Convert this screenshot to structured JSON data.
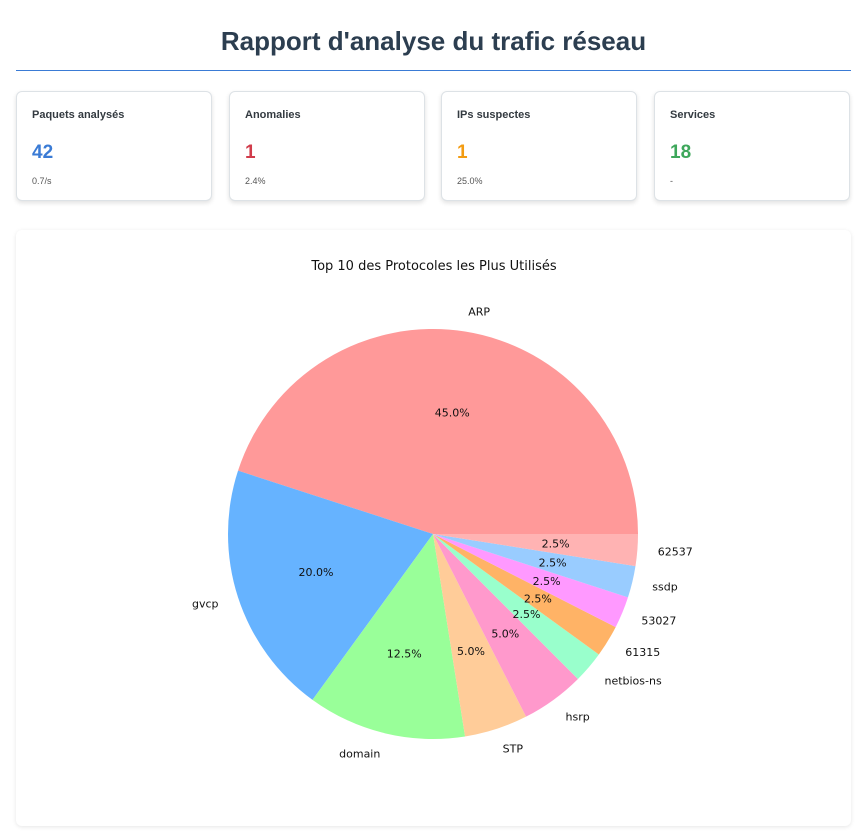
{
  "page": {
    "title": "Rapport d'analyse du trafic réseau"
  },
  "cards": [
    {
      "label": "Paquets analysés",
      "value": "42",
      "sub": "0.7/s",
      "color": "#3a7bd5"
    },
    {
      "label": "Anomalies",
      "value": "1",
      "sub": "2.4%",
      "color": "#d13c4b"
    },
    {
      "label": "IPs suspectes",
      "value": "1",
      "sub": "25.0%",
      "color": "#f39c12"
    },
    {
      "label": "Services",
      "value": "18",
      "sub": "-",
      "color": "#3ea75b"
    }
  ],
  "chart_data": {
    "type": "pie",
    "title": "Top 10 des Protocoles les Plus Utilisés",
    "start_angle_deg": 0,
    "direction": "counterclockwise",
    "slices": [
      {
        "label": "ARP",
        "value": 45.0,
        "pct_label": "45.0%",
        "color": "#ff9999"
      },
      {
        "label": "gvcp",
        "value": 20.0,
        "pct_label": "20.0%",
        "color": "#66b3ff"
      },
      {
        "label": "domain",
        "value": 12.5,
        "pct_label": "12.5%",
        "color": "#99ff99"
      },
      {
        "label": "STP",
        "value": 5.0,
        "pct_label": "5.0%",
        "color": "#ffcc99"
      },
      {
        "label": "hsrp",
        "value": 5.0,
        "pct_label": "5.0%",
        "color": "#ff99cc"
      },
      {
        "label": "netbios-ns",
        "value": 2.5,
        "pct_label": "2.5%",
        "color": "#99ffcc"
      },
      {
        "label": "61315",
        "value": 2.5,
        "pct_label": "2.5%",
        "color": "#ffb366"
      },
      {
        "label": "53027",
        "value": 2.5,
        "pct_label": "2.5%",
        "color": "#ff99ff"
      },
      {
        "label": "ssdp",
        "value": 2.5,
        "pct_label": "2.5%",
        "color": "#99ccff"
      },
      {
        "label": "62537",
        "value": 2.5,
        "pct_label": "2.5%",
        "color": "#ffb3b3"
      }
    ]
  }
}
